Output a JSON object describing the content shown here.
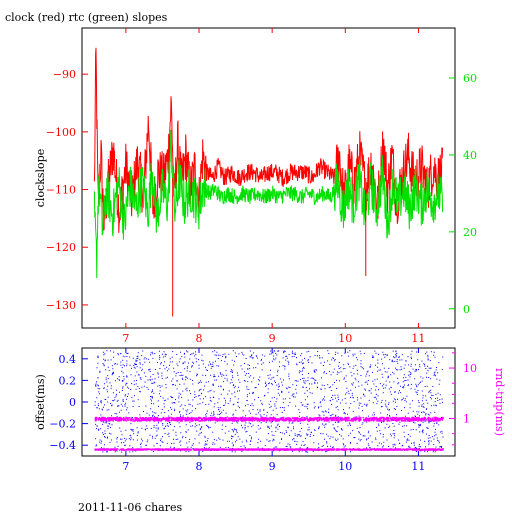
{
  "title": "clock (red) rtc (green) slopes",
  "footer": "2011-11-06 chares",
  "colors": {
    "clock": "#ff0000",
    "rtc": "#00e000",
    "offset": "#0000ff",
    "rndtrip": "#ff00ff",
    "axis": "#000000"
  },
  "chart_data": [
    {
      "type": "line",
      "title": "clock (red) rtc (green) slopes",
      "ylabel": "clockslope",
      "ylabel_right": "",
      "xlim": [
        6.4,
        11.5
      ],
      "ylim": [
        -134,
        -82
      ],
      "y2lim": [
        -5,
        73
      ],
      "xticks": [
        7,
        8,
        9,
        10,
        11
      ],
      "yticks": [
        -130,
        -120,
        -110,
        -100,
        -90
      ],
      "y2ticks": [
        0,
        20,
        40,
        60
      ],
      "x_start": 6.57,
      "x_end": 11.33,
      "series": [
        {
          "name": "clock",
          "color": "#ff0000",
          "axis": "left",
          "values": [
            [
              6.57,
              -110
            ],
            [
              6.59,
              -86
            ],
            [
              6.62,
              -113
            ],
            [
              6.66,
              -104
            ],
            [
              6.7,
              -116
            ],
            [
              6.76,
              -109
            ],
            [
              6.83,
              -103
            ],
            [
              6.91,
              -114
            ],
            [
              7.0,
              -106
            ],
            [
              7.08,
              -112
            ],
            [
              7.16,
              -105
            ],
            [
              7.24,
              -111
            ],
            [
              7.31,
              -98
            ],
            [
              7.37,
              -113
            ],
            [
              7.44,
              -107
            ],
            [
              7.52,
              -108
            ],
            [
              7.58,
              -104
            ],
            [
              7.62,
              -95
            ],
            [
              7.66,
              -112
            ],
            [
              7.71,
              -102
            ],
            [
              7.76,
              -109
            ],
            [
              7.82,
              -104
            ],
            [
              7.88,
              -110
            ],
            [
              7.95,
              -106
            ],
            [
              8.0,
              -112
            ],
            [
              8.05,
              -104
            ],
            [
              8.1,
              -107
            ],
            [
              8.18,
              -108
            ],
            [
              8.26,
              -106
            ],
            [
              8.35,
              -108
            ],
            [
              8.45,
              -107
            ],
            [
              8.55,
              -108
            ],
            [
              8.65,
              -107
            ],
            [
              8.75,
              -107
            ],
            [
              8.85,
              -108
            ],
            [
              8.95,
              -107
            ],
            [
              9.05,
              -107
            ],
            [
              9.15,
              -108
            ],
            [
              9.25,
              -107
            ],
            [
              9.35,
              -107
            ],
            [
              9.45,
              -107
            ],
            [
              9.55,
              -108
            ],
            [
              9.65,
              -106
            ],
            [
              9.75,
              -107
            ],
            [
              9.85,
              -108
            ],
            [
              9.92,
              -104
            ],
            [
              9.98,
              -112
            ],
            [
              10.05,
              -106
            ],
            [
              10.12,
              -109
            ],
            [
              10.2,
              -104
            ],
            [
              10.28,
              -110
            ],
            [
              10.36,
              -105
            ],
            [
              10.44,
              -113
            ],
            [
              10.52,
              -102
            ],
            [
              10.58,
              -110
            ],
            [
              10.64,
              -104
            ],
            [
              10.7,
              -112
            ],
            [
              10.78,
              -108
            ],
            [
              10.86,
              -104
            ],
            [
              10.95,
              -109
            ],
            [
              11.04,
              -106
            ],
            [
              11.12,
              -110
            ],
            [
              11.2,
              -106
            ],
            [
              11.27,
              -108
            ],
            [
              11.33,
              -107
            ]
          ]
        },
        {
          "name": "rtc",
          "color": "#00e000",
          "axis": "right",
          "values": [
            [
              6.57,
              25
            ],
            [
              6.6,
              12
            ],
            [
              6.63,
              35
            ],
            [
              6.68,
              20
            ],
            [
              6.74,
              31
            ],
            [
              6.82,
              24
            ],
            [
              6.9,
              33
            ],
            [
              6.98,
              22
            ],
            [
              7.06,
              32
            ],
            [
              7.14,
              26
            ],
            [
              7.22,
              33
            ],
            [
              7.3,
              25
            ],
            [
              7.36,
              36
            ],
            [
              7.42,
              24
            ],
            [
              7.5,
              31
            ],
            [
              7.57,
              27
            ],
            [
              7.62,
              43
            ],
            [
              7.67,
              25
            ],
            [
              7.73,
              34
            ],
            [
              7.8,
              27
            ],
            [
              7.87,
              31
            ],
            [
              7.94,
              29
            ],
            [
              8.0,
              26
            ],
            [
              8.06,
              32
            ],
            [
              8.14,
              30
            ],
            [
              8.22,
              31
            ],
            [
              8.3,
              29
            ],
            [
              8.4,
              30
            ],
            [
              8.5,
              29
            ],
            [
              8.6,
              30
            ],
            [
              8.7,
              29
            ],
            [
              8.8,
              30
            ],
            [
              8.9,
              29
            ],
            [
              9.0,
              30
            ],
            [
              9.1,
              29
            ],
            [
              9.2,
              30
            ],
            [
              9.3,
              30
            ],
            [
              9.4,
              29
            ],
            [
              9.5,
              30
            ],
            [
              9.6,
              29
            ],
            [
              9.7,
              30
            ],
            [
              9.8,
              29
            ],
            [
              9.9,
              33
            ],
            [
              9.97,
              25
            ],
            [
              10.04,
              32
            ],
            [
              10.11,
              27
            ],
            [
              10.19,
              34
            ],
            [
              10.27,
              24
            ],
            [
              10.35,
              33
            ],
            [
              10.43,
              26
            ],
            [
              10.51,
              35
            ],
            [
              10.58,
              22
            ],
            [
              10.65,
              33
            ],
            [
              10.72,
              27
            ],
            [
              10.8,
              31
            ],
            [
              10.88,
              26
            ],
            [
              10.96,
              32
            ],
            [
              11.04,
              27
            ],
            [
              11.12,
              31
            ],
            [
              11.2,
              28
            ],
            [
              11.27,
              30
            ],
            [
              11.33,
              28
            ]
          ]
        }
      ]
    },
    {
      "type": "scatter",
      "ylabel": "offset(ms)",
      "ylabel_right": "rnd-trip(ms)",
      "xlim": [
        6.4,
        11.5
      ],
      "ylim": [
        -0.5,
        0.5
      ],
      "y2log": true,
      "y2lim": [
        0.18,
        25
      ],
      "xticks": [
        7,
        8,
        9,
        10,
        11
      ],
      "yticks": [
        -0.4,
        -0.2,
        0,
        0.2,
        0.4
      ],
      "y2ticks": [
        1,
        10
      ],
      "x_start": 6.57,
      "x_end": 11.33,
      "offset_spread": [
        -0.46,
        0.48
      ],
      "rndtrip_bands": [
        {
          "value": 1.0,
          "spread": 0.08
        },
        {
          "value": 0.25,
          "spread": 0.03
        }
      ]
    }
  ]
}
